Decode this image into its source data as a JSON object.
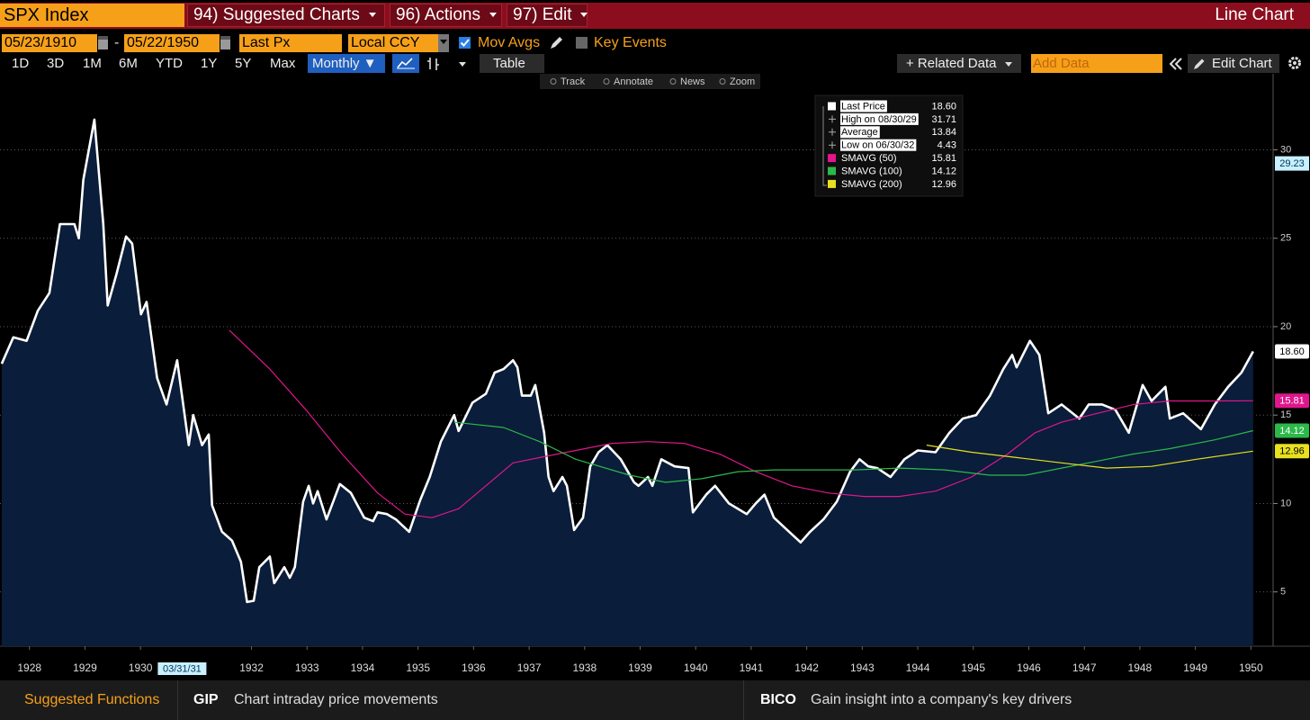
{
  "ui": {
    "security": "SPX Index",
    "menus": [
      "94) Suggested Charts",
      "96) Actions",
      "97) Edit"
    ],
    "chart_type": "Line Chart",
    "start_date": "05/23/1910",
    "date_sep": "-",
    "end_date": "05/22/1950",
    "field": "Last Px",
    "currency": "Local CCY",
    "mov_avgs": "Mov Avgs",
    "key_events": "Key Events",
    "periods": [
      "1D",
      "3D",
      "1M",
      "6M",
      "YTD",
      "1Y",
      "5Y",
      "Max"
    ],
    "frequency": "Monthly ▼",
    "table": "Table",
    "related_data": "+ Related Data",
    "add_data": "Add Data",
    "edit_chart": "Edit Chart",
    "chart_tools": [
      "Track",
      "Annotate",
      "News",
      "Zoom"
    ],
    "footer": {
      "title": "Suggested Functions",
      "items": [
        {
          "code": "GIP",
          "text": "Chart intraday price movements"
        },
        {
          "code": "BICO",
          "text": "Gain insight into a company's key drivers"
        }
      ]
    }
  },
  "chart_data": {
    "type": "line",
    "xlim": [
      1927.97,
      1950.9
    ],
    "ylim": [
      1.93,
      34.3
    ],
    "yticks": [
      5,
      10,
      15,
      20,
      25,
      30
    ],
    "xticks": [
      {
        "value": 1928.5,
        "label": "1928"
      },
      {
        "value": 1929.5,
        "label": "1929"
      },
      {
        "value": 1930.5,
        "label": "1930"
      },
      {
        "value": 1932.5,
        "label": "1932"
      },
      {
        "value": 1933.5,
        "label": "1933"
      },
      {
        "value": 1934.5,
        "label": "1934"
      },
      {
        "value": 1935.5,
        "label": "1935"
      },
      {
        "value": 1936.5,
        "label": "1936"
      },
      {
        "value": 1937.5,
        "label": "1937"
      },
      {
        "value": 1938.5,
        "label": "1938"
      },
      {
        "value": 1939.5,
        "label": "1939"
      },
      {
        "value": 1940.5,
        "label": "1940"
      },
      {
        "value": 1941.5,
        "label": "1941"
      },
      {
        "value": 1942.5,
        "label": "1942"
      },
      {
        "value": 1943.5,
        "label": "1943"
      },
      {
        "value": 1944.5,
        "label": "1944"
      },
      {
        "value": 1945.5,
        "label": "1945"
      },
      {
        "value": 1946.5,
        "label": "1946"
      },
      {
        "value": 1947.5,
        "label": "1947"
      },
      {
        "value": 1948.5,
        "label": "1948"
      },
      {
        "value": 1949.5,
        "label": "1949"
      },
      {
        "value": 1950.5,
        "label": "1950"
      }
    ],
    "grid": true,
    "fill": "#0a1d3a",
    "cursor": {
      "x": {
        "value": 1931.25,
        "label": "03/31/31"
      },
      "y": {
        "value": 29.23,
        "label": "29.23"
      }
    },
    "series": [
      {
        "name": "Last Price",
        "color": "#ffffff",
        "legend_value": "18.60",
        "x": [
          1928.0,
          1928.21,
          1928.45,
          1928.65,
          1928.86,
          1929.05,
          1929.31,
          1929.39,
          1929.47,
          1929.67,
          1929.83,
          1929.91,
          1930.07,
          1930.24,
          1930.35,
          1930.51,
          1930.61,
          1930.8,
          1930.97,
          1931.16,
          1931.37,
          1931.45,
          1931.61,
          1931.73,
          1931.79,
          1931.97,
          1932.15,
          1932.31,
          1932.42,
          1932.54,
          1932.64,
          1932.83,
          1932.91,
          1933.09,
          1933.19,
          1933.28,
          1933.43,
          1933.53,
          1933.61,
          1933.69,
          1933.85,
          1934.09,
          1934.29,
          1934.53,
          1934.69,
          1934.77,
          1934.94,
          1935.1,
          1935.34,
          1935.54,
          1935.71,
          1935.91,
          1936.15,
          1936.23,
          1936.48,
          1936.72,
          1936.88,
          1937.04,
          1937.21,
          1937.29,
          1937.37,
          1937.53,
          1937.61,
          1937.77,
          1937.85,
          1937.94,
          1938.1,
          1938.18,
          1938.31,
          1938.47,
          1938.6,
          1938.75,
          1938.91,
          1939.15,
          1939.39,
          1939.47,
          1939.64,
          1939.72,
          1939.88,
          1940.12,
          1940.37,
          1940.45,
          1940.69,
          1940.85,
          1941.1,
          1941.42,
          1941.58,
          1941.74,
          1941.91,
          1942.15,
          1942.39,
          1942.56,
          1942.8,
          1943.04,
          1943.28,
          1943.45,
          1943.61,
          1943.77,
          1944.01,
          1944.26,
          1944.5,
          1944.82,
          1945.07,
          1945.31,
          1945.55,
          1945.8,
          1946.04,
          1946.2,
          1946.28,
          1946.52,
          1946.69,
          1946.85,
          1947.09,
          1947.41,
          1947.58,
          1947.82,
          1948.06,
          1948.3,
          1948.55,
          1948.71,
          1948.96,
          1949.04,
          1949.28,
          1949.6,
          1949.85,
          1950.09,
          1950.33,
          1950.54
        ],
        "values": [
          17.9,
          19.4,
          19.2,
          20.9,
          21.9,
          25.8,
          25.8,
          25.0,
          28.3,
          31.71,
          25.8,
          21.2,
          23.0,
          25.1,
          24.7,
          20.7,
          21.4,
          17.1,
          15.6,
          18.1,
          13.3,
          15.0,
          13.3,
          13.9,
          9.9,
          8.4,
          7.9,
          6.7,
          4.43,
          4.5,
          6.4,
          7.0,
          5.5,
          6.4,
          5.8,
          6.4,
          10.1,
          11.0,
          10.0,
          10.7,
          9.1,
          11.1,
          10.6,
          9.2,
          9.0,
          9.5,
          9.4,
          9.1,
          8.4,
          10.2,
          11.5,
          13.5,
          15.0,
          14.1,
          15.7,
          16.2,
          17.4,
          17.6,
          18.1,
          17.7,
          16.1,
          16.1,
          16.7,
          14.0,
          11.5,
          10.7,
          11.5,
          11.0,
          8.5,
          9.2,
          12.1,
          12.9,
          13.3,
          12.5,
          11.2,
          11.0,
          11.5,
          11.0,
          12.5,
          12.1,
          12.0,
          9.5,
          10.5,
          11.0,
          10.0,
          9.4,
          10.0,
          10.5,
          9.2,
          8.5,
          7.8,
          8.4,
          9.1,
          10.1,
          11.8,
          12.5,
          12.1,
          12.0,
          11.5,
          12.5,
          13.0,
          12.9,
          14.0,
          14.8,
          15.0,
          16.1,
          17.6,
          18.4,
          17.7,
          19.2,
          18.4,
          15.1,
          15.6,
          14.8,
          15.6,
          15.6,
          15.3,
          14.0,
          16.7,
          15.8,
          16.6,
          14.8,
          15.1,
          14.2,
          15.6,
          16.6,
          17.4,
          18.6
        ]
      },
      {
        "name": "SMAVG (50)",
        "color": "#e0168c",
        "legend_value": "15.81",
        "x": [
          1932.1,
          1932.83,
          1933.48,
          1934.13,
          1934.77,
          1935.26,
          1935.75,
          1936.23,
          1936.72,
          1937.21,
          1937.69,
          1938.34,
          1938.99,
          1939.64,
          1940.29,
          1940.93,
          1941.58,
          1942.23,
          1942.88,
          1943.53,
          1944.17,
          1944.82,
          1945.47,
          1946.12,
          1946.61,
          1947.09,
          1947.74,
          1948.39,
          1949.04,
          1949.85,
          1950.54
        ],
        "values": [
          19.8,
          17.6,
          15.3,
          12.8,
          10.6,
          9.4,
          9.2,
          9.7,
          11.0,
          12.3,
          12.6,
          13.0,
          13.4,
          13.5,
          13.4,
          12.8,
          11.8,
          11.0,
          10.6,
          10.4,
          10.4,
          10.7,
          11.5,
          12.8,
          14.0,
          14.6,
          15.1,
          15.6,
          15.8,
          15.8,
          15.81
        ]
      },
      {
        "name": "SMAVG (100)",
        "color": "#2db84a",
        "legend_value": "14.12",
        "x": [
          1936.15,
          1937.04,
          1937.69,
          1938.34,
          1939.31,
          1939.96,
          1940.61,
          1941.26,
          1941.91,
          1942.56,
          1943.36,
          1944.17,
          1944.99,
          1945.8,
          1946.44,
          1947.09,
          1947.74,
          1948.39,
          1949.04,
          1949.85,
          1950.54
        ],
        "values": [
          14.6,
          14.3,
          13.5,
          12.5,
          11.6,
          11.2,
          11.4,
          11.8,
          11.9,
          11.9,
          11.9,
          12.0,
          11.9,
          11.6,
          11.6,
          12.0,
          12.4,
          12.8,
          13.1,
          13.6,
          14.12
        ]
      },
      {
        "name": "SMAVG (200)",
        "color": "#e8e020",
        "legend_value": "12.96",
        "x": [
          1944.66,
          1945.47,
          1946.28,
          1947.09,
          1947.9,
          1948.71,
          1949.52,
          1950.54
        ],
        "values": [
          13.3,
          12.9,
          12.6,
          12.3,
          12.0,
          12.1,
          12.5,
          12.96
        ]
      }
    ],
    "stats": [
      {
        "label": "High on 08/30/29",
        "value": "31.71"
      },
      {
        "label": "Average",
        "value": "13.84"
      },
      {
        "label": "Low on 06/30/32",
        "value": "4.43"
      }
    ]
  }
}
